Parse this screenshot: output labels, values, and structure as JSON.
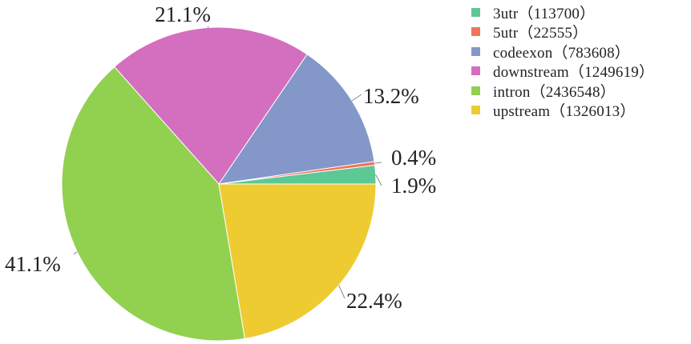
{
  "chart_data": {
    "type": "pie",
    "slices": [
      {
        "legend": "3utr（113700）",
        "value": 113700,
        "percent_label": "1.9%",
        "color": "#5dc795"
      },
      {
        "legend": "5utr（22555）",
        "value": 22555,
        "percent_label": "0.4%",
        "color": "#f0735a"
      },
      {
        "legend": "codeexon（783608）",
        "value": 783608,
        "percent_label": "13.2%",
        "color": "#8497c9"
      },
      {
        "legend": "downstream（1249619）",
        "value": 1249619,
        "percent_label": "21.1%",
        "color": "#d46ebe"
      },
      {
        "legend": "intron（2436548）",
        "value": 2436548,
        "percent_label": "41.1%",
        "color": "#92d050"
      },
      {
        "legend": "upstream（1326013）",
        "value": 1326013,
        "percent_label": "22.4%",
        "color": "#efcb32"
      }
    ],
    "legend_position": "top-right"
  }
}
